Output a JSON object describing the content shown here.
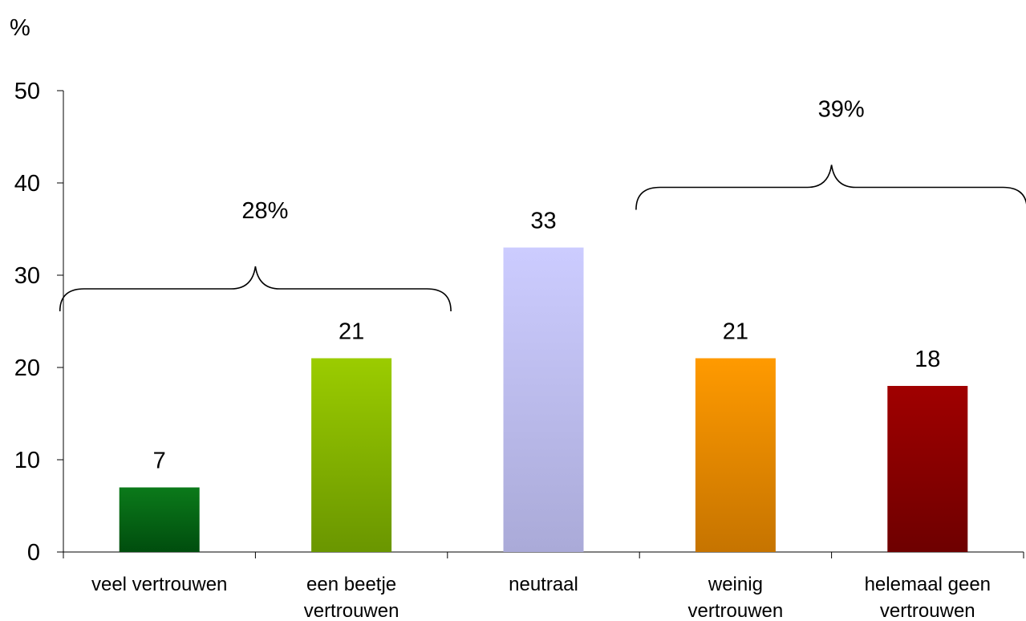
{
  "chart_data": {
    "type": "bar",
    "ylabel": "%",
    "ylim": [
      0,
      50
    ],
    "yticks": [
      0,
      10,
      20,
      30,
      40,
      50
    ],
    "grid": false,
    "categories": [
      [
        "veel vertrouwen"
      ],
      [
        "een beetje",
        "vertrouwen"
      ],
      [
        "neutraal"
      ],
      [
        "weinig",
        "vertrouwen"
      ],
      [
        "helemaal geen",
        "vertrouwen"
      ]
    ],
    "values": [
      7,
      21,
      33,
      21,
      18
    ],
    "value_labels": [
      "7",
      "21",
      "33",
      "21",
      "18"
    ],
    "colors": [
      [
        "#0b7a1a",
        "#004d0e"
      ],
      [
        "#9bcc00",
        "#6a9600"
      ],
      [
        "#ccccff",
        "#aaaad8"
      ],
      [
        "#ff9a00",
        "#c67400"
      ],
      [
        "#a00000",
        "#6e0000"
      ]
    ],
    "group_annotations": [
      {
        "label": "28%",
        "from_category": 0,
        "to_category": 1,
        "value": 28
      },
      {
        "label": "39%",
        "from_category": 3,
        "to_category": 4,
        "value": 39
      }
    ]
  }
}
